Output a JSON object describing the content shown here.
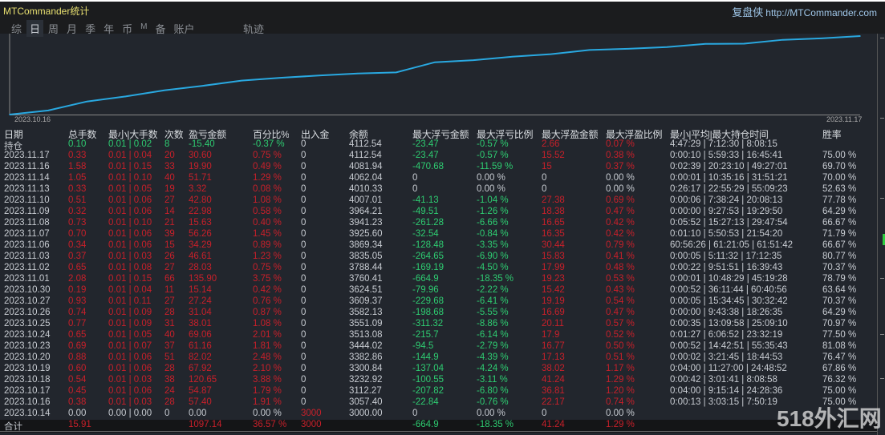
{
  "header": {
    "title": "MTCommander统计",
    "brand_cn": "复盘侠",
    "brand_url": "http://MTCommander.com"
  },
  "tabs": [
    {
      "label": "综"
    },
    {
      "label": "日",
      "active": true
    },
    {
      "label": "周"
    },
    {
      "label": "月"
    },
    {
      "label": "季"
    },
    {
      "label": "年"
    },
    {
      "label": "币"
    },
    {
      "label": "M"
    },
    {
      "label": "备"
    },
    {
      "label": "账户"
    }
  ],
  "track_tab": "轨迹",
  "colors": {
    "line": "#29a8e0",
    "red": "#c8202a",
    "green": "#2ecc71",
    "background": "#22262d"
  },
  "chart_data": {
    "type": "line",
    "x_tick_labels": [
      "2023.10.16",
      "2023.11.17"
    ],
    "x": [
      "2023.10.16",
      "2023.10.17",
      "2023.10.18",
      "2023.10.19",
      "2023.10.20",
      "2023.10.23",
      "2023.10.24",
      "2023.10.25",
      "2023.10.26",
      "2023.10.27",
      "2023.10.30",
      "2023.11.01",
      "2023.11.02",
      "2023.11.03",
      "2023.11.06",
      "2023.11.07",
      "2023.11.08",
      "2023.11.09",
      "2023.11.10",
      "2023.11.13",
      "2023.11.14",
      "2023.11.16",
      "2023.11.17"
    ],
    "y": [
      3057.4,
      3112.27,
      3232.92,
      3300.84,
      3382.86,
      3444.02,
      3513.08,
      3551.09,
      3582.13,
      3609.37,
      3624.51,
      3760.41,
      3788.44,
      3835.05,
      3869.34,
      3925.6,
      3941.23,
      3964.21,
      4007.01,
      4010.33,
      4062.04,
      4081.94,
      4112.54
    ],
    "grid": false
  },
  "table": {
    "headers": [
      "日期",
      "总手数",
      "最小|大手数",
      "次数",
      "盈亏金额",
      "百分比%",
      "出入金",
      "余额",
      "最大浮亏金额",
      "最大浮亏比例",
      "最大浮盈金额",
      "最大浮盈比例",
      "最小|平均|最大持仓时间",
      "胜率"
    ],
    "rows": [
      {
        "tone": "green",
        "cells": [
          "持仓",
          "0.10",
          "0.01 | 0.02",
          "8",
          "-15.40",
          "-0.37 %",
          "0",
          "4112.54",
          "-23.47",
          "-0.57 %",
          "2.66",
          "0.07 %",
          "4:47:29 | 7:12:30 | 8:08:15",
          ""
        ]
      },
      {
        "tone": "red",
        "cells": [
          "2023.11.17",
          "0.33",
          "0.01 | 0.04",
          "20",
          "30.60",
          "0.75 %",
          "0",
          "4112.54",
          "-23.47",
          "-0.57 %",
          "15.52",
          "0.38 %",
          "0:00:10 | 5:59:33 | 16:45:41",
          "75.00 %"
        ]
      },
      {
        "tone": "red",
        "cells": [
          "2023.11.16",
          "1.58",
          "0.01 | 0.15",
          "33",
          "19.90",
          "0.49 %",
          "0",
          "4081.94",
          "-470.68",
          "-11.59 %",
          "15",
          "0.37 %",
          "0:02:39 | 20:23:10 | 49:27:01",
          "69.70 %"
        ]
      },
      {
        "tone": "red",
        "cells": [
          "2023.11.14",
          "1.05",
          "0.01 | 0.10",
          "40",
          "51.71",
          "1.29 %",
          "0",
          "4062.04",
          "0",
          "0.00 %",
          "0",
          "0.00 %",
          "0:00:01 | 10:35:16 | 31:51:21",
          "70.00 %"
        ]
      },
      {
        "tone": "red",
        "cells": [
          "2023.11.13",
          "0.33",
          "0.01 | 0.05",
          "19",
          "3.32",
          "0.08 %",
          "0",
          "4010.33",
          "0",
          "0.00 %",
          "0",
          "0.00 %",
          "0:26:17 | 22:55:29 | 55:09:23",
          "52.63 %"
        ]
      },
      {
        "tone": "red",
        "cells": [
          "2023.11.10",
          "0.51",
          "0.01 | 0.06",
          "27",
          "42.80",
          "1.08 %",
          "0",
          "4007.01",
          "-41.13",
          "-1.04 %",
          "27.38",
          "0.69 %",
          "0:00:06 | 7:38:24 | 20:08:13",
          "77.78 %"
        ]
      },
      {
        "tone": "red",
        "cells": [
          "2023.11.09",
          "0.32",
          "0.01 | 0.06",
          "14",
          "22.98",
          "0.58 %",
          "0",
          "3964.21",
          "-49.51",
          "-1.26 %",
          "18.38",
          "0.47 %",
          "0:00:00 | 9:27:53 | 19:29:50",
          "64.29 %"
        ]
      },
      {
        "tone": "red",
        "cells": [
          "2023.11.08",
          "0.73",
          "0.01 | 0.10",
          "21",
          "15.63",
          "0.40 %",
          "0",
          "3941.23",
          "-261.28",
          "-6.66 %",
          "16.65",
          "0.42 %",
          "0:05:52 | 15:27:13 | 29:47:54",
          "66.67 %"
        ]
      },
      {
        "tone": "red",
        "cells": [
          "2023.11.07",
          "0.70",
          "0.01 | 0.06",
          "39",
          "56.26",
          "1.45 %",
          "0",
          "3925.60",
          "-32.54",
          "-0.84 %",
          "16.35",
          "0.42 %",
          "0:01:10 | 5:50:53 | 21:54:20",
          "71.79 %"
        ]
      },
      {
        "tone": "red",
        "cells": [
          "2023.11.06",
          "0.34",
          "0.01 | 0.06",
          "15",
          "34.29",
          "0.89 %",
          "0",
          "3869.34",
          "-128.48",
          "-3.35 %",
          "30.44",
          "0.79 %",
          "60:56:26 | 61:21:05 | 61:51:42",
          "66.67 %"
        ]
      },
      {
        "tone": "red",
        "cells": [
          "2023.11.03",
          "0.37",
          "0.01 | 0.03",
          "26",
          "46.61",
          "1.23 %",
          "0",
          "3835.05",
          "-264.65",
          "-6.90 %",
          "15.83",
          "0.41 %",
          "0:00:05 | 5:11:32 | 17:12:35",
          "80.77 %"
        ]
      },
      {
        "tone": "red",
        "cells": [
          "2023.11.02",
          "0.65",
          "0.01 | 0.08",
          "27",
          "28.03",
          "0.75 %",
          "0",
          "3788.44",
          "-169.19",
          "-4.50 %",
          "17.99",
          "0.48 %",
          "0:00:22 | 9:51:51 | 16:39:43",
          "70.37 %"
        ]
      },
      {
        "tone": "red",
        "cells": [
          "2023.11.01",
          "2.08",
          "0.01 | 0.15",
          "66",
          "135.90",
          "3.75 %",
          "0",
          "3760.41",
          "-664.9",
          "-18.35 %",
          "19.23",
          "0.53 %",
          "0:00:01 | 10:48:29 | 45:19:28",
          "78.79 %"
        ]
      },
      {
        "tone": "red",
        "cells": [
          "2023.10.30",
          "0.19",
          "0.01 | 0.04",
          "11",
          "15.14",
          "0.42 %",
          "0",
          "3624.51",
          "-79.96",
          "-2.22 %",
          "15.42",
          "0.43 %",
          "0:00:52 | 36:11:44 | 60:40:56",
          "63.64 %"
        ]
      },
      {
        "tone": "red",
        "cells": [
          "2023.10.27",
          "0.93",
          "0.01 | 0.11",
          "27",
          "27.24",
          "0.76 %",
          "0",
          "3609.37",
          "-229.68",
          "-6.41 %",
          "19.19",
          "0.54 %",
          "0:00:05 | 15:34:45 | 30:32:42",
          "70.37 %"
        ]
      },
      {
        "tone": "red",
        "cells": [
          "2023.10.26",
          "0.74",
          "0.01 | 0.09",
          "28",
          "31.04",
          "0.87 %",
          "0",
          "3582.13",
          "-198.68",
          "-5.55 %",
          "16.69",
          "0.47 %",
          "0:00:00 | 9:43:38 | 18:26:35",
          "64.29 %"
        ]
      },
      {
        "tone": "red",
        "cells": [
          "2023.10.25",
          "0.77",
          "0.01 | 0.09",
          "31",
          "38.01",
          "1.08 %",
          "0",
          "3551.09",
          "-311.32",
          "-8.86 %",
          "20.11",
          "0.57 %",
          "0:00:35 | 13:09:58 | 25:09:10",
          "70.97 %"
        ]
      },
      {
        "tone": "red",
        "cells": [
          "2023.10.24",
          "0.65",
          "0.01 | 0.05",
          "40",
          "69.06",
          "2.01 %",
          "0",
          "3513.08",
          "-215.7",
          "-6.14 %",
          "17.9",
          "0.52 %",
          "0:01:27 | 6:06:52 | 23:32:19",
          "77.50 %"
        ]
      },
      {
        "tone": "red",
        "cells": [
          "2023.10.23",
          "0.69",
          "0.01 | 0.07",
          "37",
          "61.16",
          "1.81 %",
          "0",
          "3444.02",
          "-94.5",
          "-2.79 %",
          "16.77",
          "0.50 %",
          "0:00:52 | 14:42:51 | 55:35:43",
          "81.08 %"
        ]
      },
      {
        "tone": "red",
        "cells": [
          "2023.10.20",
          "0.88",
          "0.01 | 0.06",
          "51",
          "82.02",
          "2.48 %",
          "0",
          "3382.86",
          "-144.9",
          "-4.39 %",
          "17.13",
          "0.51 %",
          "0:00:02 | 3:21:45 | 18:44:53",
          "76.47 %"
        ]
      },
      {
        "tone": "red",
        "cells": [
          "2023.10.19",
          "0.60",
          "0.01 | 0.06",
          "28",
          "67.92",
          "2.10 %",
          "0",
          "3300.84",
          "-137.04",
          "-4.24 %",
          "38.02",
          "1.17 %",
          "0:04:00 | 11:27:00 | 24:48:52",
          "67.86 %"
        ]
      },
      {
        "tone": "red",
        "cells": [
          "2023.10.18",
          "0.54",
          "0.01 | 0.03",
          "38",
          "120.65",
          "3.88 %",
          "0",
          "3232.92",
          "-100.55",
          "-3.11 %",
          "41.24",
          "1.29 %",
          "0:00:42 | 3:01:41 | 8:08:58",
          "76.32 %"
        ]
      },
      {
        "tone": "red",
        "cells": [
          "2023.10.17",
          "0.45",
          "0.01 | 0.06",
          "24",
          "54.87",
          "1.79 %",
          "0",
          "3112.27",
          "-207.82",
          "-6.80 %",
          "36.81",
          "1.20 %",
          "0:04:00 | 9:15:14 | 24:28:36",
          "75.00 %"
        ]
      },
      {
        "tone": "red",
        "cells": [
          "2023.10.16",
          "0.38",
          "0.01 | 0.03",
          "28",
          "57.40",
          "1.91 %",
          "0",
          "3057.40",
          "-22.84",
          "-0.76 %",
          "22.17",
          "0.74 %",
          "0:00:13 | 3:03:15 | 7:50:19",
          "75.00 %"
        ]
      },
      {
        "tone": "grey",
        "cells": [
          "2023.10.14",
          "0.00",
          "0.00 | 0.00",
          "0",
          "0.00",
          "0.00 %",
          "3000",
          "3000.00",
          "0",
          "0.00 %",
          "0",
          "0.00 %",
          "",
          ""
        ]
      }
    ],
    "total": {
      "tone": "red",
      "cells": [
        "合计",
        "15.91",
        "",
        "",
        "1097.14",
        "36.57 %",
        "3000",
        "",
        "-664.9",
        "-18.35 %",
        "41.24",
        "1.29 %",
        "",
        ""
      ]
    }
  },
  "watermark": "518外汇网"
}
